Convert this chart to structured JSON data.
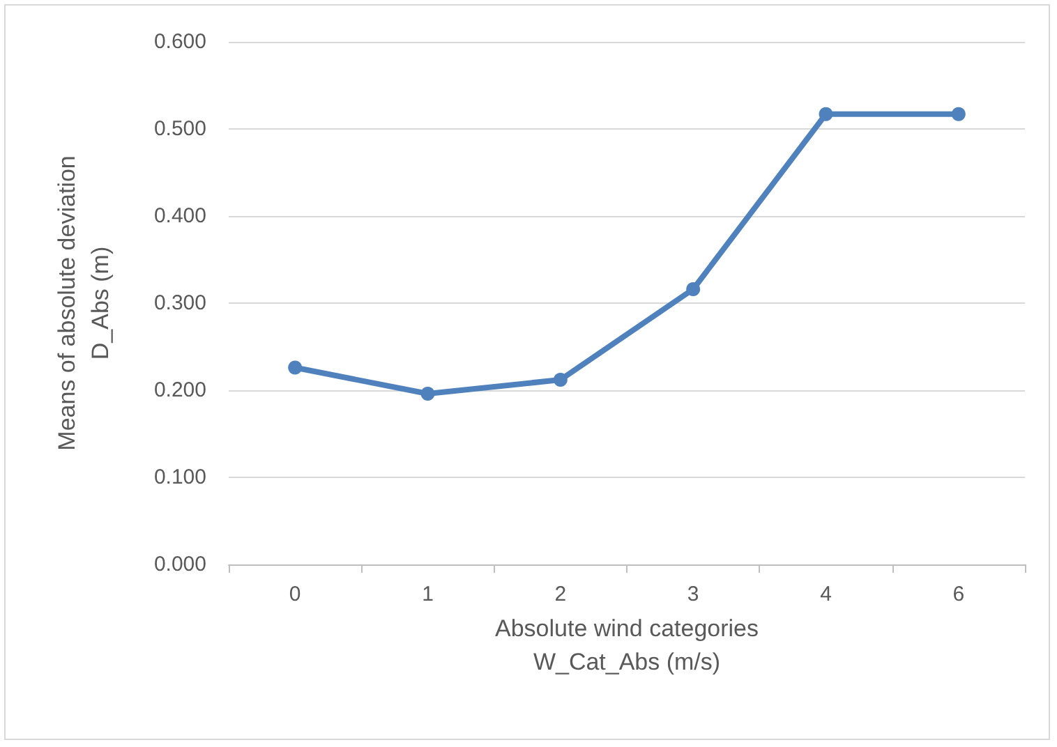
{
  "chart_data": {
    "type": "line",
    "xlabel": "Absolute wind categories\nW_Cat_Abs (m/s)",
    "ylabel": "Means of absolute deviation\nD_Abs (m)",
    "categories": [
      "0",
      "1",
      "2",
      "3",
      "4",
      "6"
    ],
    "series": [
      {
        "color": "#4f81bd",
        "values": [
          0.226,
          0.196,
          0.212,
          0.316,
          0.517,
          0.517
        ]
      }
    ],
    "ylim": [
      0,
      0.6
    ],
    "yticks": [
      {
        "value": 0,
        "label": "0.000"
      },
      {
        "value": 0.1,
        "label": "0.100"
      },
      {
        "value": 0.2,
        "label": "0.200"
      },
      {
        "value": 0.3,
        "label": "0.300"
      },
      {
        "value": 0.4,
        "label": "0.400"
      },
      {
        "value": 0.5,
        "label": "0.500"
      },
      {
        "value": 0.6,
        "label": "0.600"
      }
    ],
    "grid": "y",
    "marker": "circle",
    "line_style": "solid"
  }
}
